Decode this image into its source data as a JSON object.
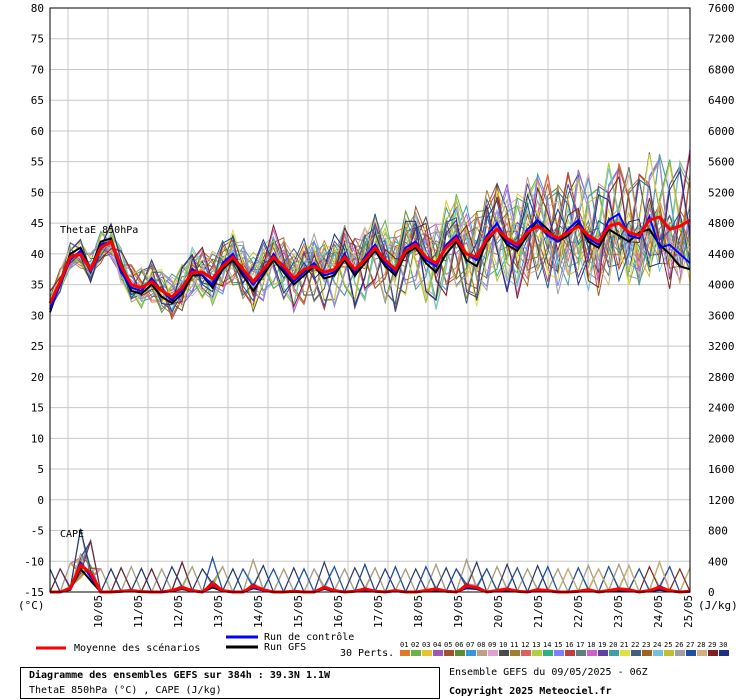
{
  "chart_data": {
    "type": "line",
    "left_axis": {
      "unit": "(°C)",
      "ticks": [
        -15,
        -10,
        -5,
        0,
        5,
        10,
        15,
        20,
        25,
        30,
        35,
        40,
        45,
        50,
        55,
        60,
        65,
        70,
        75,
        80
      ],
      "range": [
        -15,
        80
      ]
    },
    "right_axis": {
      "unit": "(J/kg)",
      "ticks": [
        0,
        400,
        800,
        1200,
        1600,
        2000,
        2400,
        2800,
        3200,
        3600,
        4000,
        4400,
        4800,
        5200,
        5600,
        6000,
        6400,
        6800,
        7200,
        7600
      ]
    },
    "x_labels": [
      "10/05",
      "11/05",
      "12/05",
      "13/05",
      "14/05",
      "15/05",
      "16/05",
      "17/05",
      "18/05",
      "19/05",
      "20/05",
      "21/05",
      "22/05",
      "23/05",
      "24/05",
      "25/05"
    ],
    "x_ticks_per_day": 4,
    "x_start_offset_steps": 3,
    "steps": 64,
    "panel_labels": [
      "ThetaE 850hPa",
      "CAPE"
    ],
    "grid": true,
    "thetae_mean": [
      32.0,
      35.5,
      39.5,
      40.0,
      37.5,
      41.0,
      42.0,
      38.0,
      35.0,
      34.5,
      35.5,
      34.0,
      33.0,
      34.5,
      37.0,
      37.0,
      36.0,
      38.0,
      39.5,
      37.5,
      35.5,
      37.5,
      39.5,
      38.0,
      36.0,
      37.5,
      38.0,
      37.0,
      37.5,
      39.5,
      37.5,
      39.0,
      41.0,
      39.0,
      37.5,
      40.5,
      41.5,
      39.5,
      38.5,
      41.0,
      42.5,
      40.0,
      39.5,
      42.5,
      44.0,
      42.5,
      41.5,
      43.5,
      44.5,
      43.5,
      42.5,
      43.5,
      44.5,
      43.0,
      42.0,
      44.5,
      45.0,
      43.5,
      43.0,
      45.5,
      46.0,
      44.0,
      44.5,
      45.5
    ],
    "thetae_control": [
      31.0,
      35.0,
      39.0,
      40.5,
      37.0,
      41.5,
      42.0,
      37.0,
      34.5,
      34.0,
      36.0,
      34.0,
      32.5,
      34.0,
      37.5,
      36.5,
      35.0,
      38.5,
      40.0,
      37.0,
      35.0,
      37.0,
      40.0,
      37.5,
      35.5,
      37.0,
      38.5,
      36.5,
      37.0,
      40.0,
      37.0,
      39.5,
      41.5,
      38.5,
      37.0,
      41.0,
      42.0,
      39.0,
      38.0,
      41.5,
      43.0,
      40.0,
      39.0,
      43.0,
      45.0,
      42.0,
      41.0,
      44.0,
      45.5,
      43.0,
      42.0,
      44.0,
      45.5,
      42.5,
      41.5,
      45.5,
      46.5,
      43.0,
      42.5,
      46.0,
      41.0,
      41.5,
      40.0,
      38.5
    ],
    "thetae_gfs": [
      30.5,
      35.5,
      40.0,
      41.0,
      37.5,
      42.0,
      42.5,
      37.5,
      34.0,
      33.5,
      35.0,
      33.0,
      32.0,
      33.5,
      36.5,
      36.5,
      34.5,
      37.5,
      39.0,
      36.5,
      34.0,
      36.5,
      39.0,
      37.0,
      35.0,
      36.5,
      38.0,
      36.0,
      36.5,
      39.0,
      36.5,
      38.5,
      40.5,
      38.0,
      36.5,
      40.0,
      41.0,
      38.5,
      37.0,
      40.0,
      42.0,
      39.0,
      38.0,
      42.0,
      44.0,
      41.5,
      40.5,
      43.0,
      45.5,
      44.0,
      42.0,
      43.0,
      45.0,
      42.0,
      41.0,
      44.0,
      43.0,
      42.0,
      43.5,
      44.0,
      41.5,
      40.0,
      38.0,
      37.5
    ],
    "cape_mean": [
      0,
      0,
      50,
      350,
      250,
      0,
      0,
      10,
      20,
      5,
      0,
      0,
      20,
      60,
      20,
      0,
      100,
      20,
      0,
      0,
      80,
      30,
      0,
      0,
      10,
      0,
      0,
      60,
      20,
      0,
      10,
      40,
      10,
      0,
      20,
      0,
      0,
      20,
      40,
      10,
      0,
      80,
      60,
      0,
      20,
      40,
      10,
      0,
      30,
      20,
      0,
      0,
      10,
      30,
      0,
      20,
      40,
      30,
      0,
      20,
      60,
      20,
      0,
      10
    ],
    "cape_control": [
      0,
      0,
      40,
      380,
      200,
      0,
      0,
      10,
      15,
      5,
      0,
      0,
      15,
      50,
      20,
      0,
      80,
      20,
      0,
      0,
      60,
      20,
      0,
      0,
      10,
      0,
      0,
      50,
      15,
      0,
      10,
      30,
      10,
      0,
      20,
      0,
      0,
      15,
      30,
      10,
      0,
      60,
      50,
      0,
      15,
      30,
      10,
      0,
      20,
      15,
      0,
      0,
      10,
      20,
      0,
      15,
      30,
      20,
      0,
      15,
      40,
      15,
      0,
      10
    ],
    "cape_gfs": [
      0,
      0,
      30,
      300,
      150,
      0,
      0,
      5,
      10,
      0,
      0,
      0,
      10,
      40,
      10,
      0,
      60,
      10,
      0,
      0,
      50,
      20,
      0,
      0,
      5,
      0,
      0,
      40,
      10,
      0,
      5,
      20,
      5,
      0,
      10,
      0,
      0,
      10,
      20,
      5,
      0,
      50,
      40,
      0,
      10,
      20,
      5,
      0,
      15,
      10,
      0,
      0,
      5,
      15,
      0,
      10,
      20,
      15,
      0,
      10,
      30,
      10,
      0,
      5
    ],
    "legend": {
      "mean": "Moyenne des scénarios",
      "control": "Run de contrôle",
      "gfs": "Run GFS",
      "perts": "30 Perts."
    },
    "pert_labels": [
      "01",
      "02",
      "03",
      "04",
      "05",
      "06",
      "07",
      "08",
      "09",
      "10",
      "11",
      "12",
      "13",
      "14",
      "15",
      "16",
      "17",
      "18",
      "19",
      "20",
      "21",
      "22",
      "23",
      "24",
      "25",
      "26",
      "27",
      "28",
      "29",
      "30"
    ],
    "pert_colors": [
      "#e07a2a",
      "#6ab04c",
      "#e8c431",
      "#9b59b6",
      "#a0522d",
      "#5e8c31",
      "#3498db",
      "#c0a080",
      "#e0a0d0",
      "#4a4a4a",
      "#a08030",
      "#e06060",
      "#b0d040",
      "#30b080",
      "#8080ff",
      "#c04040",
      "#608080",
      "#d060d0",
      "#6040a0",
      "#40a0a0",
      "#e0e040",
      "#406080",
      "#a06020",
      "#70c0e0",
      "#c0c030",
      "#a0a0a0",
      "#2050a0",
      "#d0b080",
      "#802020",
      "#203080"
    ],
    "colors": {
      "mean": "#ff0000",
      "control": "#0000ff",
      "gfs": "#000000",
      "grid": "#c8c8c8"
    }
  },
  "info": {
    "title": "Diagramme des ensembles GEFS sur 384h : 39.3N 1.1W",
    "subtitle": "ThetaE 850hPa (°C) , CAPE (J/kg)",
    "run": "Ensemble GEFS du 09/05/2025 - 06Z",
    "copyright": "Copyright 2025 Meteociel.fr"
  }
}
